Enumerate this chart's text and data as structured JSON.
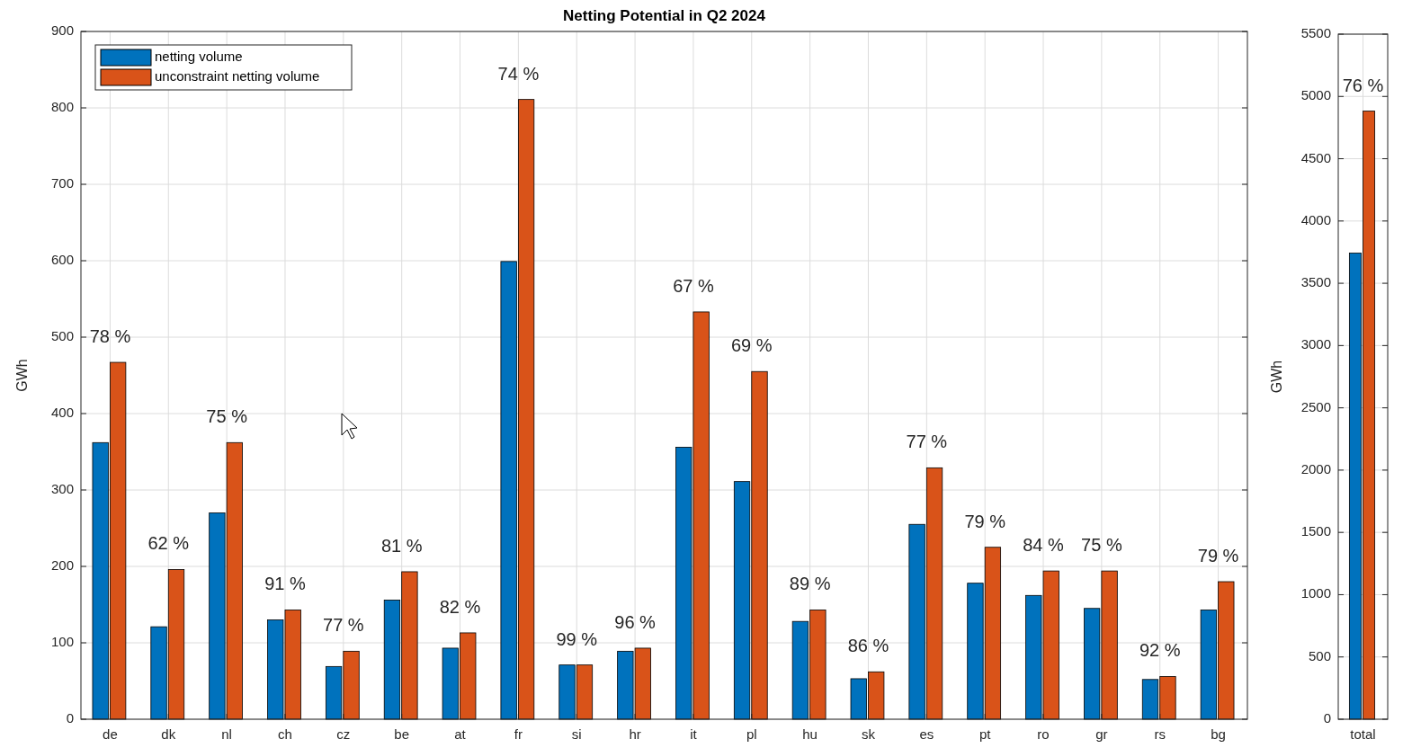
{
  "chart_data": [
    {
      "type": "bar",
      "title": "Netting Potential in Q2 2024",
      "ylabel": "GWh",
      "categories": [
        "de",
        "dk",
        "nl",
        "ch",
        "cz",
        "be",
        "at",
        "fr",
        "si",
        "hr",
        "it",
        "pl",
        "hu",
        "sk",
        "es",
        "pt",
        "ro",
        "gr",
        "rs",
        "bg"
      ],
      "series": [
        {
          "name": "netting volume",
          "color": "#0072bd",
          "values": [
            362,
            121,
            270,
            130,
            69,
            156,
            93,
            599,
            71,
            89,
            356,
            311,
            128,
            53,
            255,
            178,
            162,
            145,
            52,
            143
          ]
        },
        {
          "name": "unconstraint netting volume",
          "color": "#d95319",
          "values": [
            467,
            196,
            362,
            143,
            89,
            193,
            113,
            811,
            71,
            93,
            533,
            455,
            143,
            62,
            329,
            225,
            194,
            194,
            56,
            180
          ]
        }
      ],
      "ylim": [
        0,
        900
      ],
      "yticks": [
        0,
        100,
        200,
        300,
        400,
        500,
        600,
        700,
        800,
        900
      ],
      "grid": true,
      "legend": "top left",
      "annotations": [
        {
          "text": "78 %",
          "x": "de",
          "y": 467
        },
        {
          "text": "62 %",
          "x": "dk",
          "y": 196
        },
        {
          "text": "75 %",
          "x": "nl",
          "y": 362
        },
        {
          "text": "91 %",
          "x": "ch",
          "y": 143
        },
        {
          "text": "77 %",
          "x": "cz",
          "y": 89
        },
        {
          "text": "81 %",
          "x": "be",
          "y": 193
        },
        {
          "text": "82 %",
          "x": "at",
          "y": 113
        },
        {
          "text": "74 %",
          "x": "fr",
          "y": 811
        },
        {
          "text": "99 %",
          "x": "si",
          "y": 71
        },
        {
          "text": "96 %",
          "x": "hr",
          "y": 93
        },
        {
          "text": "67 %",
          "x": "it",
          "y": 533
        },
        {
          "text": "69 %",
          "x": "pl",
          "y": 455
        },
        {
          "text": "89 %",
          "x": "hu",
          "y": 143
        },
        {
          "text": "86 %",
          "x": "sk",
          "y": 62
        },
        {
          "text": "77 %",
          "x": "es",
          "y": 329
        },
        {
          "text": "79 %",
          "x": "pt",
          "y": 225
        },
        {
          "text": "84 %",
          "x": "ro",
          "y": 194
        },
        {
          "text": "75 %",
          "x": "gr",
          "y": 194
        },
        {
          "text": "92 %",
          "x": "rs",
          "y": 56
        },
        {
          "text": "79 %",
          "x": "bg",
          "y": 180
        }
      ]
    },
    {
      "type": "bar",
      "ylabel": "GWh",
      "categories": [
        "total"
      ],
      "series": [
        {
          "color": "#0072bd",
          "values": [
            3742
          ]
        },
        {
          "color": "#d95319",
          "values": [
            4882
          ]
        }
      ],
      "ylim": [
        0,
        5500
      ],
      "yticks": [
        0,
        500,
        1000,
        1500,
        2000,
        2500,
        3000,
        3500,
        4000,
        4500,
        5000,
        5500
      ],
      "grid": true,
      "annotations": [
        {
          "text": "76 %",
          "x": "total",
          "y": 4882
        }
      ]
    }
  ]
}
